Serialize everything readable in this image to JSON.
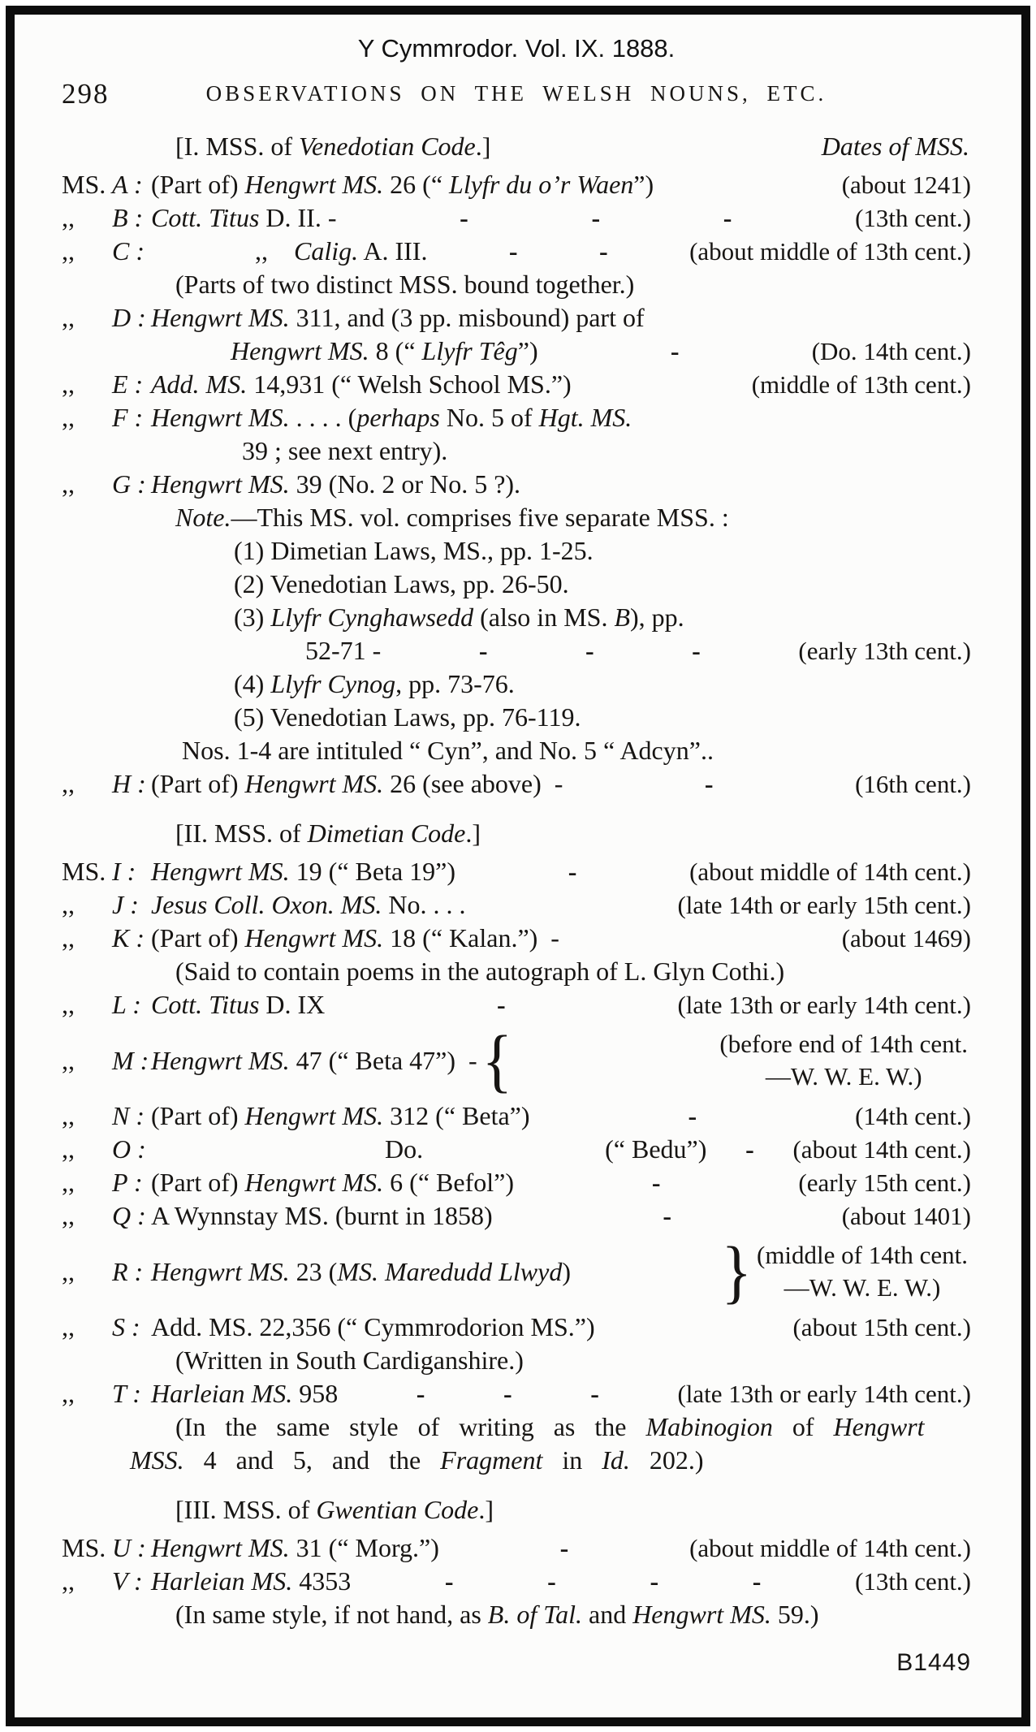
{
  "page": {
    "caption": "Y Cymmrodor. Vol. IX. 1888.",
    "page_number": "298",
    "running_title": "OBSERVATIONS ON THE WELSH NOUNS, ETC.",
    "footer_code": "B1449"
  },
  "meta": {
    "dash_char": "-"
  },
  "rows": [
    {
      "kind": "section",
      "name": "section-heading-venedotian",
      "segments": [
        {
          "t": "[I. MSS. of "
        },
        {
          "t": "Venedotian Code",
          "i": true
        },
        {
          "t": ".]"
        }
      ],
      "right": "Dates of MSS."
    },
    {
      "kind": "entry",
      "name": "entry-ms-a",
      "gutter": "MS.",
      "letter": "A :",
      "segments": [
        {
          "t": "(Part of) "
        },
        {
          "t": "Hengwrt MS.",
          "i": true
        },
        {
          "t": " 26 (“ "
        },
        {
          "t": "Llyfr du o’r Waen",
          "i": true
        },
        {
          "t": "”)"
        }
      ],
      "dashes": 0,
      "date": "(about 1241)"
    },
    {
      "kind": "entry",
      "name": "entry-ms-b",
      "gutter": ",,",
      "letter": "B :",
      "segments": [
        {
          "t": "Cott. Titus",
          "i": true
        },
        {
          "t": " D. II. -"
        }
      ],
      "dashes": 3,
      "date": "(13th cent.)"
    },
    {
      "kind": "entry",
      "name": "entry-ms-c",
      "gutter": ",,",
      "letter": "C :",
      "segments": [
        {
          "t": "    ,, "
        },
        {
          "t": "Calig.",
          "i": true
        },
        {
          "t": " A. III."
        }
      ],
      "dashes": 2,
      "date": "(about middle of 13th cent.)"
    },
    {
      "kind": "cont",
      "ind": "c1",
      "name": "note-two-mss",
      "segments": [
        {
          "t": "(Parts of two distinct MSS. bound together.)"
        }
      ]
    },
    {
      "kind": "entry",
      "name": "entry-ms-d",
      "gutter": ",,",
      "letter": "D :",
      "segments": [
        {
          "t": "Hengwrt MS.",
          "i": true
        },
        {
          "t": " 311, and (3 pp. misbound) part of"
        }
      ]
    },
    {
      "kind": "cont",
      "ind": "c2",
      "name": "entry-ms-d-cont",
      "segments": [
        {
          "t": "Hengwrt MS.",
          "i": true
        },
        {
          "t": " 8 (“ "
        },
        {
          "t": "Llyfr Têg",
          "i": true
        },
        {
          "t": "”)"
        }
      ],
      "dashes": 1,
      "date": "(Do. 14th cent.)"
    },
    {
      "kind": "entry",
      "name": "entry-ms-e",
      "gutter": ",,",
      "letter": "E :",
      "segments": [
        {
          "t": "Add. MS.",
          "i": true
        },
        {
          "t": " 14,931 (“ Welsh School MS.”)"
        }
      ],
      "dashes": 0,
      "date": "(middle of 13th cent.)"
    },
    {
      "kind": "entry",
      "name": "entry-ms-f",
      "gutter": ",,",
      "letter": "F :",
      "segments": [
        {
          "t": "Hengwrt MS.",
          "i": true
        },
        {
          "t": " . . . . ("
        },
        {
          "t": "perhaps",
          "i": true
        },
        {
          "t": " No. 5 of "
        },
        {
          "t": "Hgt. MS.",
          "i": true
        }
      ]
    },
    {
      "kind": "cont",
      "ind": "c39",
      "name": "entry-ms-f-cont",
      "segments": [
        {
          "t": "39 ; see next entry)."
        }
      ]
    },
    {
      "kind": "entry",
      "name": "entry-ms-g",
      "gutter": ",,",
      "letter": "G :",
      "segments": [
        {
          "t": "Hengwrt MS.",
          "i": true
        },
        {
          "t": " 39 (No. 2 or No. 5 ?)."
        }
      ]
    },
    {
      "kind": "cont",
      "ind": "c1",
      "name": "note-five-mss",
      "segments": [
        {
          "t": "Note.",
          "i": true
        },
        {
          "t": "—This MS. vol. comprises five separate MSS. :"
        }
      ]
    },
    {
      "kind": "cont",
      "ind": "item",
      "name": "list-item-1",
      "segments": [
        {
          "t": "(1) Dimetian Laws, MS., pp. 1-25."
        }
      ]
    },
    {
      "kind": "cont",
      "ind": "item",
      "name": "list-item-2",
      "segments": [
        {
          "t": "(2) Venedotian Laws, pp. 26-50."
        }
      ]
    },
    {
      "kind": "cont",
      "ind": "item",
      "name": "list-item-3",
      "segments": [
        {
          "t": "(3) "
        },
        {
          "t": "Llyfr Cynghawsedd",
          "i": true
        },
        {
          "t": " (also in MS. "
        },
        {
          "t": "B",
          "i": true
        },
        {
          "t": "), pp."
        }
      ]
    },
    {
      "kind": "cont",
      "ind": "sub",
      "name": "list-item-3-cont",
      "segments": [
        {
          "t": "52-71 -"
        }
      ],
      "dashes": 3,
      "date": "(early 13th cent.)"
    },
    {
      "kind": "cont",
      "ind": "item",
      "name": "list-item-4",
      "segments": [
        {
          "t": "(4) "
        },
        {
          "t": "Llyfr Cynog",
          "i": true
        },
        {
          "t": ", pp. 73-76."
        }
      ]
    },
    {
      "kind": "cont",
      "ind": "item",
      "name": "list-item-5",
      "segments": [
        {
          "t": "(5) Venedotian Laws, pp. 76-119."
        }
      ]
    },
    {
      "kind": "cont",
      "ind": "nos",
      "name": "note-intituled",
      "segments": [
        {
          "t": "Nos. 1-4 are intituled “ Cyn”, and No. 5 “ Adcyn”.."
        }
      ]
    },
    {
      "kind": "entry",
      "name": "entry-ms-h",
      "gutter": ",,",
      "letter": "H :",
      "segments": [
        {
          "t": "(Part of) "
        },
        {
          "t": "Hengwrt MS.",
          "i": true
        },
        {
          "t": " 26 (see above)  -"
        }
      ],
      "dashes": 1,
      "date": "(16th cent.)"
    },
    {
      "kind": "section",
      "name": "section-heading-dimetian",
      "segments": [
        {
          "t": "[II. MSS. of "
        },
        {
          "t": "Dimetian Code",
          "i": true
        },
        {
          "t": ".]"
        }
      ]
    },
    {
      "kind": "entry",
      "name": "entry-ms-i",
      "gutter": "MS.",
      "letter": "I :",
      "segments": [
        {
          "t": "Hengwrt MS.",
          "i": true
        },
        {
          "t": " 19 (“ Beta 19”)"
        }
      ],
      "dashes": 1,
      "date": "(about middle of 14th cent.)"
    },
    {
      "kind": "entry",
      "name": "entry-ms-j",
      "gutter": ",,",
      "letter": "J :",
      "segments": [
        {
          "t": "Jesus Coll. Oxon. MS.",
          "i": true
        },
        {
          "t": " No. . . ."
        }
      ],
      "dashes": 0,
      "date": "(late 14th or early 15th cent.)"
    },
    {
      "kind": "entry",
      "name": "entry-ms-k",
      "gutter": ",,",
      "letter": "K :",
      "segments": [
        {
          "t": "(Part of) "
        },
        {
          "t": "Hengwrt MS.",
          "i": true
        },
        {
          "t": " 18 (“ Kalan.”)  -"
        }
      ],
      "dashes": 0,
      "date": "(about 1469)"
    },
    {
      "kind": "cont",
      "ind": "c1",
      "name": "note-glyn-cothi",
      "segments": [
        {
          "t": "(Said to contain poems in the autograph of L. Glyn Cothi.)"
        }
      ]
    },
    {
      "kind": "entry",
      "name": "entry-ms-l",
      "gutter": ",,",
      "letter": "L :",
      "segments": [
        {
          "t": "Cott. Titus",
          "i": true
        },
        {
          "t": " D. IX"
        }
      ],
      "dashes": 1,
      "date": "(late 13th or early 14th cent.)"
    },
    {
      "kind": "brace",
      "side": "m",
      "name": "entry-ms-m",
      "gutter": ",,",
      "letter": "M :",
      "segments": [
        {
          "t": "Hengwrt MS.",
          "i": true
        },
        {
          "t": " 47 (“ Beta 47”)  -"
        }
      ],
      "brace": "{",
      "date_lines": [
        "(before end of 14th cent.",
        "—W. W. E. W.)"
      ]
    },
    {
      "kind": "entry",
      "name": "entry-ms-n",
      "gutter": ",,",
      "letter": "N :",
      "segments": [
        {
          "t": "(Part of) "
        },
        {
          "t": "Hengwrt MS.",
          "i": true
        },
        {
          "t": " 312 (“ Beta”)"
        }
      ],
      "dashes": 1,
      "date": "(14th cent.)"
    },
    {
      "kind": "entry",
      "name": "entry-ms-o",
      "gutter": ",,",
      "letter": "O :",
      "segments": [
        {
          "t": "         Do.       (“ Bedu”)"
        }
      ],
      "dashes": 1,
      "date": "(about 14th cent.)"
    },
    {
      "kind": "entry",
      "name": "entry-ms-p",
      "gutter": ",,",
      "letter": "P :",
      "segments": [
        {
          "t": "(Part of) "
        },
        {
          "t": "Hengwrt MS.",
          "i": true
        },
        {
          "t": " 6 (“ Befol”)"
        }
      ],
      "dashes": 1,
      "date": "(early 15th cent.)"
    },
    {
      "kind": "entry",
      "name": "entry-ms-q",
      "gutter": ",,",
      "letter": "Q :",
      "segments": [
        {
          "t": "A Wynnstay MS. (burnt in 1858)"
        }
      ],
      "dashes": 1,
      "date": "(about 1401)"
    },
    {
      "kind": "brace",
      "side": "r",
      "name": "entry-ms-r",
      "gutter": ",,",
      "letter": "R :",
      "segments": [
        {
          "t": "Hengwrt MS.",
          "i": true
        },
        {
          "t": " 23 ("
        },
        {
          "t": "MS. Maredudd Llwyd",
          "i": true
        },
        {
          "t": ")"
        }
      ],
      "brace": "}",
      "date_lines": [
        "(middle of 14th cent.",
        "—W. W. E. W.)"
      ]
    },
    {
      "kind": "entry",
      "name": "entry-ms-s",
      "gutter": ",,",
      "letter": "S :",
      "segments": [
        {
          "t": "Add. MS. 22,356 (“ Cymmrodorion MS.”)"
        }
      ],
      "dashes": 0,
      "date": "(about 15th cent.)"
    },
    {
      "kind": "cont",
      "ind": "c1",
      "name": "note-cardiganshire",
      "segments": [
        {
          "t": "(Written in South Cardiganshire.)"
        }
      ]
    },
    {
      "kind": "entry",
      "name": "entry-ms-t",
      "gutter": ",,",
      "letter": "T :",
      "segments": [
        {
          "t": "Harleian MS.",
          "i": true
        },
        {
          "t": " 958"
        }
      ],
      "dashes": 3,
      "date": "(late 13th or early 14th cent.)"
    },
    {
      "kind": "cont",
      "ind": "c1",
      "ws": true,
      "name": "note-mabinogion",
      "segments": [
        {
          "t": "(In the same style of writing as the "
        },
        {
          "t": "Mabinogion",
          "i": true
        },
        {
          "t": " of "
        },
        {
          "t": "Hengwrt",
          "i": true
        }
      ]
    },
    {
      "kind": "cont",
      "ind": "mss",
      "ws": true,
      "name": "note-mabinogion-cont",
      "segments": [
        {
          "t": "MSS.",
          "i": true
        },
        {
          "t": " 4 and 5, and the "
        },
        {
          "t": "Fragment",
          "i": true
        },
        {
          "t": " in "
        },
        {
          "t": "Id.",
          "i": true
        },
        {
          "t": " 202.)"
        }
      ]
    },
    {
      "kind": "section",
      "name": "section-heading-gwentian",
      "segments": [
        {
          "t": "[III. MSS. of "
        },
        {
          "t": "Gwentian Code",
          "i": true
        },
        {
          "t": ".]"
        }
      ]
    },
    {
      "kind": "entry",
      "name": "entry-ms-u",
      "gutter": "MS.",
      "letter": "U :",
      "segments": [
        {
          "t": "Hengwrt MS.",
          "i": true
        },
        {
          "t": " 31 (“ Morg.”)"
        }
      ],
      "dashes": 1,
      "date": "(about middle of 14th cent.)"
    },
    {
      "kind": "entry",
      "name": "entry-ms-v",
      "gutter": ",,",
      "letter": "V :",
      "segments": [
        {
          "t": "Harleian MS.",
          "i": true
        },
        {
          "t": " 4353"
        }
      ],
      "dashes": 4,
      "date": "(13th cent.)"
    },
    {
      "kind": "cont",
      "ind": "c1",
      "name": "note-same-style",
      "segments": [
        {
          "t": "(In same style, if not hand, as "
        },
        {
          "t": "B. of Tal.",
          "i": true
        },
        {
          "t": " and "
        },
        {
          "t": "Hengwrt MS.",
          "i": true
        },
        {
          "t": " 59.)"
        }
      ]
    }
  ]
}
